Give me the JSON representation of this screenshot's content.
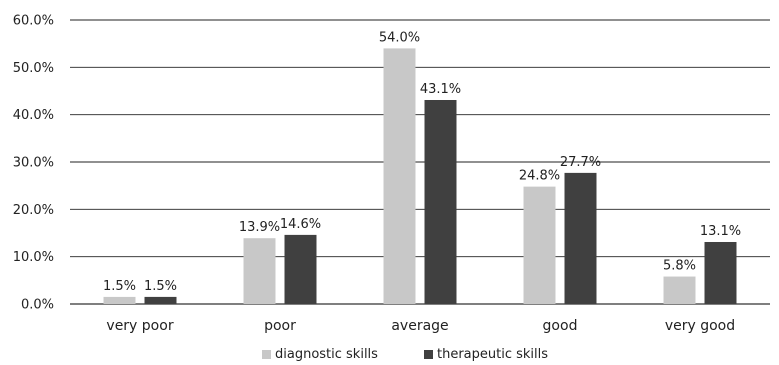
{
  "chart_data": {
    "type": "bar",
    "categories": [
      "very poor",
      "poor",
      "average",
      "good",
      "very good"
    ],
    "series": [
      {
        "name": "diagnostic skills",
        "values": [
          1.5,
          13.9,
          54.0,
          24.8,
          5.8
        ],
        "labels": [
          "1.5%",
          "13.9%",
          "54.0%",
          "24.8%",
          "5.8%"
        ],
        "color": "#c8c8c8"
      },
      {
        "name": "therapeutic skills",
        "values": [
          1.5,
          14.6,
          43.1,
          27.7,
          13.1
        ],
        "labels": [
          "1.5%",
          "14.6%",
          "43.1%",
          "27.7%",
          "13.1%"
        ],
        "color": "#404040"
      }
    ],
    "y_ticks": [
      "0.0%",
      "10.0%",
      "20.0%",
      "30.0%",
      "40.0%",
      "50.0%",
      "60.0%"
    ],
    "ylim": [
      0,
      60
    ],
    "grid": true,
    "legend_position": "bottom",
    "title": "",
    "xlabel": "",
    "ylabel": ""
  }
}
